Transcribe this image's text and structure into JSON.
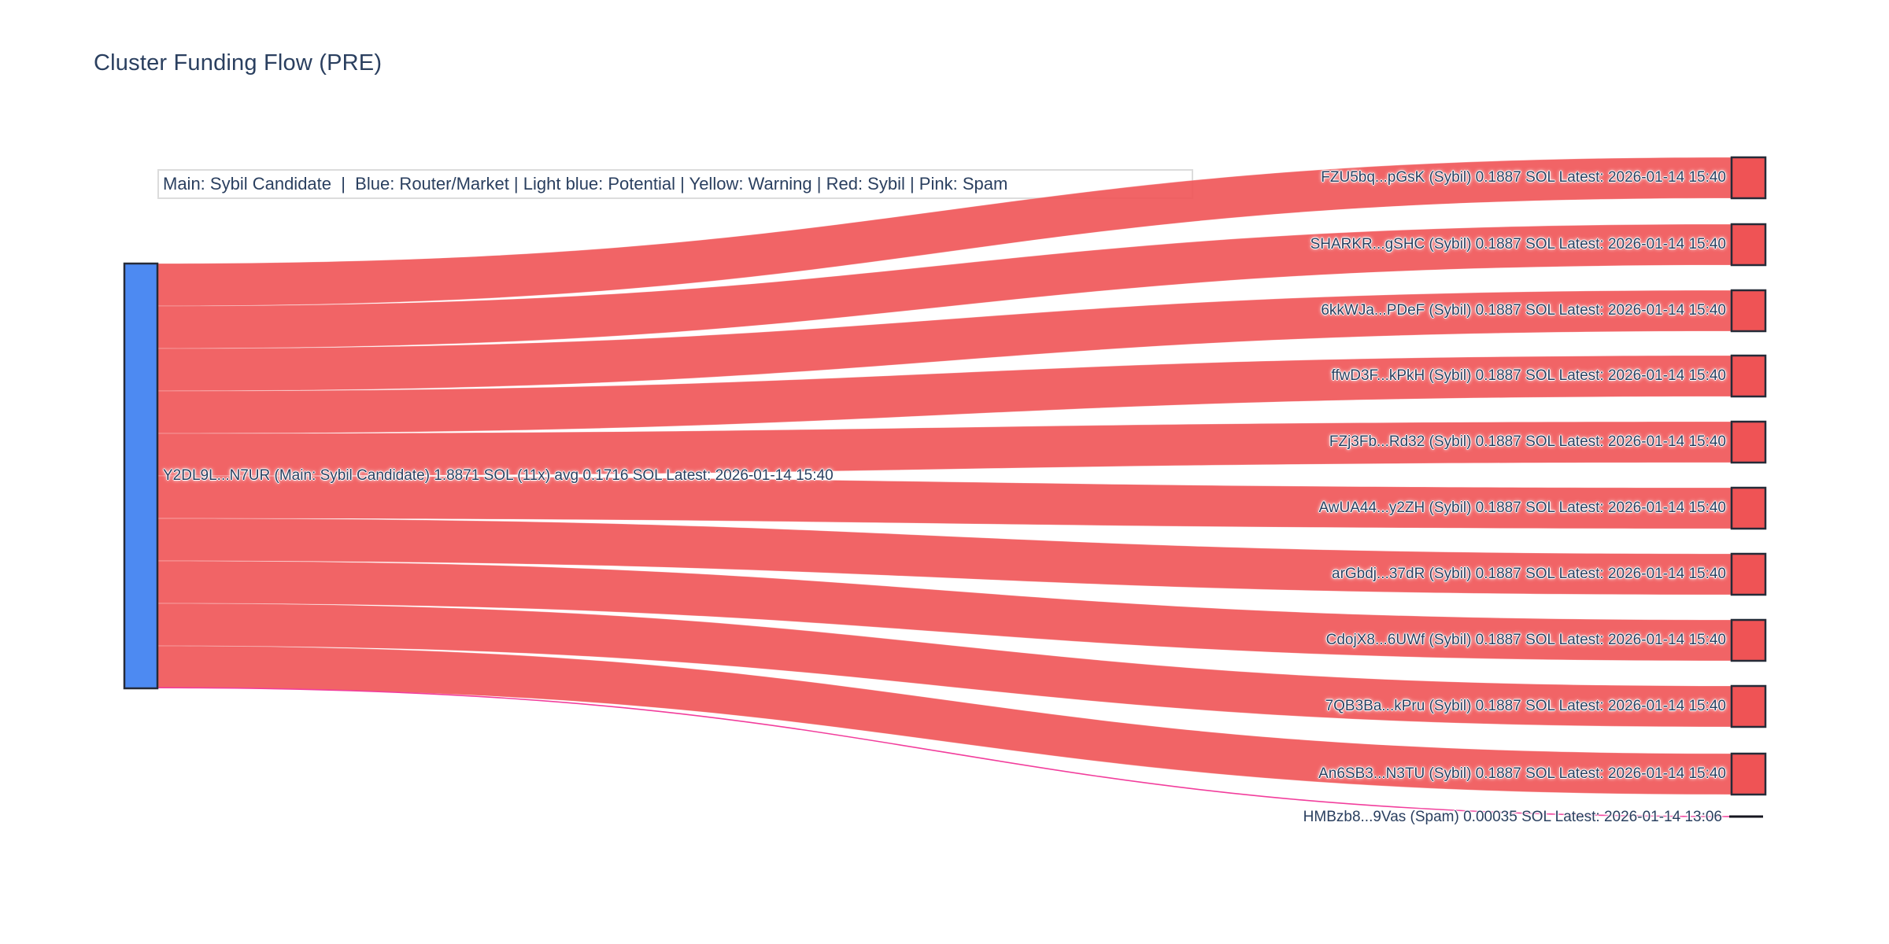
{
  "title": "Cluster Funding Flow (PRE)",
  "legend": {
    "text": "Main: Sybil Candidate  |  Blue: Router/Market | Light blue: Potential | Yellow: Warning | Red: Sybil | Pink: Spam"
  },
  "colors": {
    "title_text": "#2a3f5f",
    "label_text": "#2a3f5f",
    "source_node_fill": "#4d8af2",
    "sybil_node_fill": "#ef5355",
    "sybil_link_fill": "rgba(239,83,85,0.9)",
    "node_border": "#262b38",
    "spam_link": "#f23e9c",
    "spam_node_fill": "#15151f",
    "legend_border": "#dcdcdc",
    "legend_bg": "#ffffff"
  },
  "chart_data": {
    "type": "sankey",
    "title": "Cluster Funding Flow (PRE)",
    "legend_note": "Main: Sybil Candidate  |  Blue: Router/Market | Light blue: Potential | Yellow: Warning | Red: Sybil | Pink: Spam",
    "source": {
      "label": "Y2DL9L...N7UR (Main: Sybil Candidate) 1.8871 SOL (11x) avg 0.1716 SOL Latest: 2026-01-14 15:40",
      "address": "Y2DL9L...N7UR",
      "category": "Main: Sybil Candidate",
      "total_sol": 1.8871,
      "tx_count": "11x",
      "avg_sol": 0.1716,
      "latest": "2026-01-14 15:40",
      "color_role": "blue"
    },
    "links": [
      {
        "address": "FZU5bq...pGsK",
        "category": "Sybil",
        "value_sol": 0.1887,
        "latest": "2026-01-14 15:40",
        "color_role": "red",
        "target_label": "FZU5bq...pGsK (Sybil) 0.1887 SOL Latest: 2026-01-14 15:40"
      },
      {
        "address": "SHARKR...gSHC",
        "category": "Sybil",
        "value_sol": 0.1887,
        "latest": "2026-01-14 15:40",
        "color_role": "red",
        "target_label": "SHARKR...gSHC (Sybil) 0.1887 SOL Latest: 2026-01-14 15:40"
      },
      {
        "address": "6kkWJa...PDeF",
        "category": "Sybil",
        "value_sol": 0.1887,
        "latest": "2026-01-14 15:40",
        "color_role": "red",
        "target_label": "6kkWJa...PDeF (Sybil) 0.1887 SOL Latest: 2026-01-14 15:40"
      },
      {
        "address": "ffwD3F...kPkH",
        "category": "Sybil",
        "value_sol": 0.1887,
        "latest": "2026-01-14 15:40",
        "color_role": "red",
        "target_label": "ffwD3F...kPkH (Sybil) 0.1887 SOL Latest: 2026-01-14 15:40"
      },
      {
        "address": "FZj3Fb...Rd32",
        "category": "Sybil",
        "value_sol": 0.1887,
        "latest": "2026-01-14 15:40",
        "color_role": "red",
        "target_label": "FZj3Fb...Rd32 (Sybil) 0.1887 SOL Latest: 2026-01-14 15:40"
      },
      {
        "address": "AwUA44...y2ZH",
        "category": "Sybil",
        "value_sol": 0.1887,
        "latest": "2026-01-14 15:40",
        "color_role": "red",
        "target_label": "AwUA44...y2ZH (Sybil) 0.1887 SOL Latest: 2026-01-14 15:40"
      },
      {
        "address": "arGbdj...37dR",
        "category": "Sybil",
        "value_sol": 0.1887,
        "latest": "2026-01-14 15:40",
        "color_role": "red",
        "target_label": "arGbdj...37dR (Sybil) 0.1887 SOL Latest: 2026-01-14 15:40"
      },
      {
        "address": "CdojX8...6UWf",
        "category": "Sybil",
        "value_sol": 0.1887,
        "latest": "2026-01-14 15:40",
        "color_role": "red",
        "target_label": "CdojX8...6UWf (Sybil) 0.1887 SOL Latest: 2026-01-14 15:40"
      },
      {
        "address": "7QB3Ba...kPru",
        "category": "Sybil",
        "value_sol": 0.1887,
        "latest": "2026-01-14 15:40",
        "color_role": "red",
        "target_label": "7QB3Ba...kPru (Sybil) 0.1887 SOL Latest: 2026-01-14 15:40"
      },
      {
        "address": "An6SB3...N3TU",
        "category": "Sybil",
        "value_sol": 0.1887,
        "latest": "2026-01-14 15:40",
        "color_role": "red",
        "target_label": "An6SB3...N3TU (Sybil) 0.1887 SOL Latest: 2026-01-14 15:40"
      },
      {
        "address": "HMBzb8...9Vas",
        "category": "Spam",
        "value_sol": 0.00035,
        "latest": "2026-01-14 13:06",
        "color_role": "pink",
        "target_label": "HMBzb8...9Vas (Spam) 0.00035 SOL Latest: 2026-01-14 13:06"
      }
    ]
  }
}
